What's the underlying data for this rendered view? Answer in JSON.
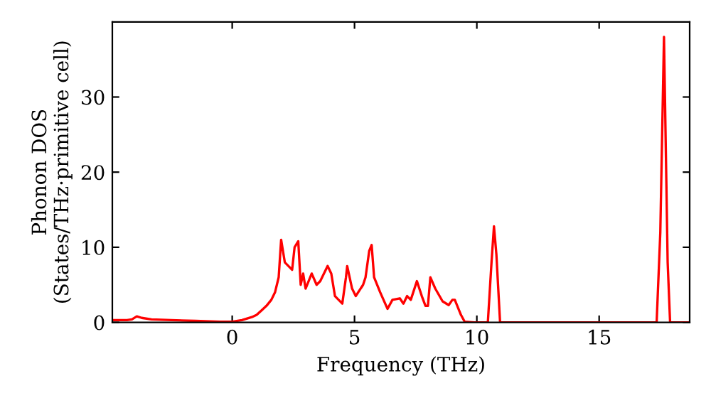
{
  "chart_data": {
    "type": "line",
    "xlabel": "Frequency (THz)",
    "ylabel": "Phonon DOS\n(States/THz·primitive cell)",
    "series": [
      {
        "color": "#ff0000",
        "x": [
          -4.9,
          -4.3,
          -4.1,
          -3.9,
          -3.7,
          -3.3,
          -2.5,
          -1.5,
          -0.5,
          0,
          0.4,
          0.8,
          1.0,
          1.2,
          1.4,
          1.6,
          1.75,
          1.9,
          2.0,
          2.15,
          2.3,
          2.45,
          2.55,
          2.7,
          2.8,
          2.9,
          3.0,
          3.25,
          3.45,
          3.6,
          3.9,
          4.05,
          4.2,
          4.5,
          4.65,
          4.7,
          4.9,
          5.05,
          5.35,
          5.45,
          5.6,
          5.7,
          5.8,
          6.05,
          6.35,
          6.55,
          6.85,
          7.0,
          7.15,
          7.3,
          7.55,
          7.75,
          7.9,
          8.0,
          8.1,
          8.3,
          8.6,
          8.85,
          9.0,
          9.1,
          9.35,
          9.5,
          9.9,
          10.45,
          10.6,
          10.7,
          10.8,
          10.95,
          17.35,
          17.5,
          17.65,
          17.8,
          17.9,
          18.7
        ],
        "values": [
          0.3,
          0.3,
          0.4,
          0.8,
          0.6,
          0.4,
          0.3,
          0.2,
          0.1,
          0.1,
          0.3,
          0.7,
          1.0,
          1.6,
          2.2,
          3.0,
          4.0,
          6.0,
          11.0,
          8.0,
          7.5,
          7.0,
          10.0,
          10.8,
          5.0,
          6.5,
          4.5,
          6.5,
          5.0,
          5.5,
          7.5,
          6.5,
          3.5,
          2.5,
          6.0,
          7.5,
          4.5,
          3.5,
          5.0,
          6.0,
          9.5,
          10.3,
          6.0,
          4.0,
          1.8,
          3.0,
          3.2,
          2.5,
          3.5,
          3.0,
          5.5,
          3.5,
          2.2,
          2.2,
          6.0,
          4.5,
          2.8,
          2.3,
          3.0,
          3.0,
          1.0,
          0.1,
          0,
          0,
          8,
          12.8,
          9,
          0,
          0,
          12,
          38,
          8,
          0,
          0
        ]
      }
    ],
    "xlim": [
      -4.9,
      18.7
    ],
    "ylim": [
      0,
      40
    ],
    "xticks": [
      0,
      5,
      10,
      15
    ],
    "yticks": [
      0,
      10,
      20,
      30
    ],
    "grid": false,
    "legend": false,
    "marker": "none",
    "line_style": "solid"
  }
}
